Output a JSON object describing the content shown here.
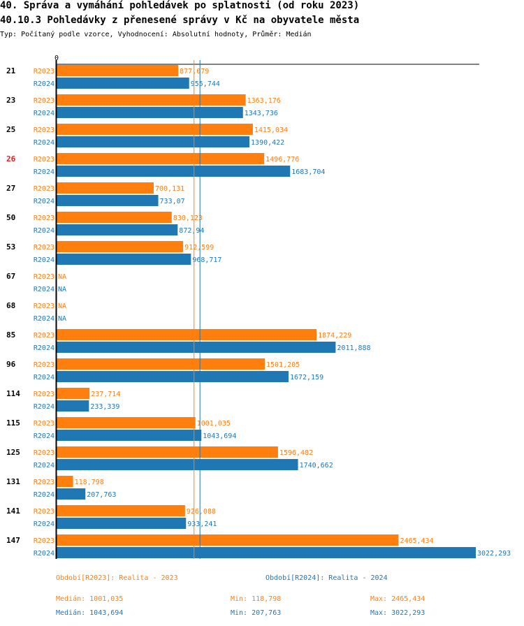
{
  "header": {
    "title": "40. Správa a vymáhání pohledávek po splatnosti (od roku 2023)",
    "subtitle_title": "40.10.3 Pohledávky z přenesené správy v Kč na obyvatele města",
    "info": "Typ: Počítaný podle vzorce, Vyhodnocení: Absolutní hodnoty, Průměr: Medián"
  },
  "colors": {
    "r2023": "#ff7f0e",
    "r2024": "#1f77b4",
    "highlight_category": "#e41a1c",
    "axis": "#000000"
  },
  "chart_data": {
    "type": "bar",
    "orientation": "horizontal",
    "title": "40.10.3 Pohledávky z přenesené správy v Kč na obyvatele města",
    "xlabel": "",
    "ylabel": "",
    "x_tick_labels": [
      "0"
    ],
    "xlim": [
      0,
      3022.293
    ],
    "highlighted_category": "26",
    "categories": [
      "21",
      "23",
      "25",
      "26",
      "27",
      "50",
      "53",
      "67",
      "68",
      "85",
      "96",
      "114",
      "115",
      "125",
      "131",
      "141",
      "147"
    ],
    "series": [
      {
        "name": "R2023",
        "color": "#ff7f0e",
        "values": [
          877.079,
          1363.176,
          1415.034,
          1496.776,
          700.131,
          830.123,
          912.599,
          null,
          null,
          1874.229,
          1501.205,
          237.714,
          1001.035,
          1596.482,
          118.798,
          926.088,
          2465.434
        ],
        "labels": [
          "877,079",
          "1363,176",
          "1415,034",
          "1496,776",
          "700,131",
          "830,123",
          "912,599",
          "NA",
          "NA",
          "1874,229",
          "1501,205",
          "237,714",
          "1001,035",
          "1596,482",
          "118,798",
          "926,088",
          "2465,434"
        ]
      },
      {
        "name": "R2024",
        "color": "#1f77b4",
        "values": [
          955.744,
          1343.736,
          1390.422,
          1683.704,
          733.07,
          872.94,
          968.717,
          null,
          null,
          2011.888,
          1672.159,
          233.339,
          1043.694,
          1740.662,
          207.763,
          933.241,
          3022.293
        ],
        "labels": [
          "955,744",
          "1343,736",
          "1390,422",
          "1683,704",
          "733,07",
          "872,94",
          "968,717",
          "NA",
          "NA",
          "2011,888",
          "1672,159",
          "233,339",
          "1043,694",
          "1740,662",
          "207,763",
          "933,241",
          "3022,293"
        ]
      }
    ],
    "reference_lines": [
      {
        "series": "R2023",
        "type": "median",
        "value": 1001.035
      },
      {
        "series": "R2024",
        "type": "median",
        "value": 1043.694
      }
    ]
  },
  "legend": {
    "r2023_label": "Období[R2023]: Realita - 2023",
    "r2024_label": "Období[R2024]: Realita - 2024"
  },
  "stats": {
    "r2023": {
      "median": "Medián: 1001,035",
      "min": "Min: 118,798",
      "max": "Max: 2465,434"
    },
    "r2024": {
      "median": "Medián: 1043,694",
      "min": "Min: 207,763",
      "max": "Max: 3022,293"
    }
  }
}
